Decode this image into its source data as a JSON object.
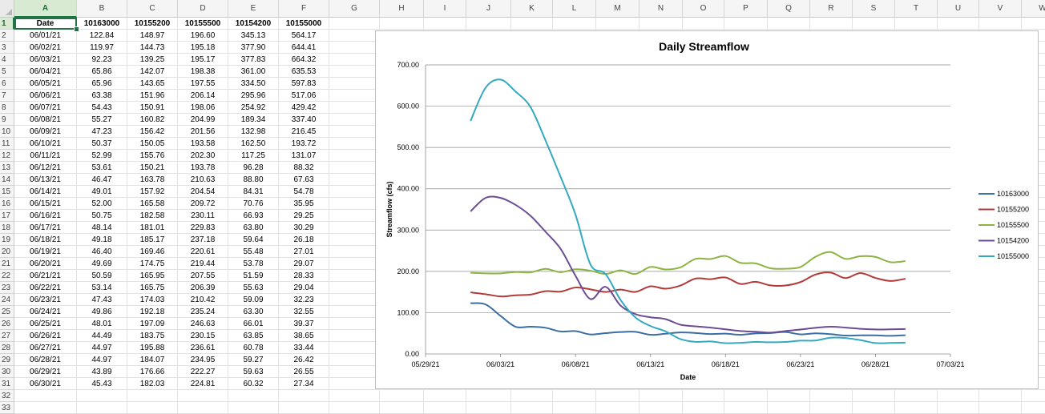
{
  "sheet": {
    "columns": [
      "A",
      "B",
      "C",
      "D",
      "E",
      "F",
      "G",
      "H",
      "I",
      "J",
      "K",
      "L",
      "M",
      "N",
      "O",
      "P",
      "Q",
      "R",
      "S",
      "T",
      "U",
      "V",
      "W"
    ],
    "row_numbers": [
      1,
      2,
      3,
      4,
      5,
      6,
      7,
      8,
      9,
      10,
      11,
      12,
      13,
      14,
      15,
      16,
      17,
      18,
      19,
      20,
      21,
      22,
      23,
      24,
      25,
      26,
      27,
      28,
      29,
      30,
      31,
      32,
      33
    ],
    "active_cell": "A1",
    "headers": [
      "Date",
      "10163000",
      "10155200",
      "10155500",
      "10154200",
      "10155000"
    ],
    "rows": [
      [
        "06/01/21",
        "122.84",
        "148.97",
        "196.60",
        "345.13",
        "564.17"
      ],
      [
        "06/02/21",
        "119.97",
        "144.73",
        "195.18",
        "377.90",
        "644.41"
      ],
      [
        "06/03/21",
        "92.23",
        "139.25",
        "195.17",
        "377.83",
        "664.32"
      ],
      [
        "06/04/21",
        "65.86",
        "142.07",
        "198.38",
        "361.00",
        "635.53"
      ],
      [
        "06/05/21",
        "65.96",
        "143.65",
        "197.55",
        "334.50",
        "597.83"
      ],
      [
        "06/06/21",
        "63.38",
        "151.96",
        "206.14",
        "295.96",
        "517.06"
      ],
      [
        "06/07/21",
        "54.43",
        "150.91",
        "198.06",
        "254.92",
        "429.42"
      ],
      [
        "06/08/21",
        "55.27",
        "160.82",
        "204.99",
        "189.34",
        "337.40"
      ],
      [
        "06/09/21",
        "47.23",
        "156.42",
        "201.56",
        "132.98",
        "216.45"
      ],
      [
        "06/10/21",
        "50.37",
        "150.05",
        "193.58",
        "162.50",
        "193.72"
      ],
      [
        "06/11/21",
        "52.99",
        "155.76",
        "202.30",
        "117.25",
        "131.07"
      ],
      [
        "06/12/21",
        "53.61",
        "150.21",
        "193.78",
        "96.28",
        "88.32"
      ],
      [
        "06/13/21",
        "46.47",
        "163.78",
        "210.63",
        "88.80",
        "67.63"
      ],
      [
        "06/14/21",
        "49.01",
        "157.92",
        "204.54",
        "84.31",
        "54.78"
      ],
      [
        "06/15/21",
        "52.00",
        "165.58",
        "209.72",
        "70.76",
        "35.95"
      ],
      [
        "06/16/21",
        "50.75",
        "182.58",
        "230.11",
        "66.93",
        "29.25"
      ],
      [
        "06/17/21",
        "48.14",
        "181.01",
        "229.83",
        "63.80",
        "30.29"
      ],
      [
        "06/18/21",
        "49.18",
        "185.17",
        "237.18",
        "59.64",
        "26.18"
      ],
      [
        "06/19/21",
        "46.40",
        "169.46",
        "220.61",
        "55.48",
        "27.01"
      ],
      [
        "06/20/21",
        "49.69",
        "174.75",
        "219.44",
        "53.78",
        "29.07"
      ],
      [
        "06/21/21",
        "50.59",
        "165.95",
        "207.55",
        "51.59",
        "28.33"
      ],
      [
        "06/22/21",
        "53.14",
        "165.75",
        "206.39",
        "55.63",
        "29.04"
      ],
      [
        "06/23/21",
        "47.43",
        "174.03",
        "210.42",
        "59.09",
        "32.23"
      ],
      [
        "06/24/21",
        "49.86",
        "192.18",
        "235.24",
        "63.30",
        "32.55"
      ],
      [
        "06/25/21",
        "48.01",
        "197.09",
        "246.63",
        "66.01",
        "39.37"
      ],
      [
        "06/26/21",
        "44.49",
        "183.75",
        "230.15",
        "63.85",
        "38.65"
      ],
      [
        "06/27/21",
        "44.97",
        "195.88",
        "236.61",
        "60.78",
        "33.44"
      ],
      [
        "06/28/21",
        "44.97",
        "184.07",
        "234.95",
        "59.27",
        "26.42"
      ],
      [
        "06/29/21",
        "43.89",
        "176.66",
        "222.27",
        "59.63",
        "26.55"
      ],
      [
        "06/30/21",
        "45.43",
        "182.03",
        "224.81",
        "60.32",
        "27.34"
      ]
    ]
  },
  "chart_data": {
    "type": "line",
    "title": "Daily Streamflow",
    "xlabel": "Date",
    "ylabel": "Streamflow (cfs)",
    "ylim": [
      0,
      700
    ],
    "y_ticks": [
      "0.00",
      "100.00",
      "200.00",
      "300.00",
      "400.00",
      "500.00",
      "600.00",
      "700.00"
    ],
    "x_ticks": [
      "05/29/21",
      "06/03/21",
      "06/08/21",
      "06/13/21",
      "06/18/21",
      "06/23/21",
      "06/28/21",
      "07/03/21"
    ],
    "xlim": [
      "05/29/21",
      "07/03/21"
    ],
    "x": [
      "06/01/21",
      "06/02/21",
      "06/03/21",
      "06/04/21",
      "06/05/21",
      "06/06/21",
      "06/07/21",
      "06/08/21",
      "06/09/21",
      "06/10/21",
      "06/11/21",
      "06/12/21",
      "06/13/21",
      "06/14/21",
      "06/15/21",
      "06/16/21",
      "06/17/21",
      "06/18/21",
      "06/19/21",
      "06/20/21",
      "06/21/21",
      "06/22/21",
      "06/23/21",
      "06/24/21",
      "06/25/21",
      "06/26/21",
      "06/27/21",
      "06/28/21",
      "06/29/21",
      "06/30/21"
    ],
    "grid": "horizontal",
    "legend_position": "right",
    "smooth": true,
    "series": [
      {
        "name": "10163000",
        "color": "#3c6ea4",
        "values": [
          122.84,
          119.97,
          92.23,
          65.86,
          65.96,
          63.38,
          54.43,
          55.27,
          47.23,
          50.37,
          52.99,
          53.61,
          46.47,
          49.01,
          52.0,
          50.75,
          48.14,
          49.18,
          46.4,
          49.69,
          50.59,
          53.14,
          47.43,
          49.86,
          48.01,
          44.49,
          44.97,
          44.97,
          43.89,
          45.43
        ]
      },
      {
        "name": "10155200",
        "color": "#b33a3a",
        "values": [
          148.97,
          144.73,
          139.25,
          142.07,
          143.65,
          151.96,
          150.91,
          160.82,
          156.42,
          150.05,
          155.76,
          150.21,
          163.78,
          157.92,
          165.58,
          182.58,
          181.01,
          185.17,
          169.46,
          174.75,
          165.95,
          165.75,
          174.03,
          192.18,
          197.09,
          183.75,
          195.88,
          184.07,
          176.66,
          182.03
        ]
      },
      {
        "name": "10155500",
        "color": "#8db343",
        "values": [
          196.6,
          195.18,
          195.17,
          198.38,
          197.55,
          206.14,
          198.06,
          204.99,
          201.56,
          193.58,
          202.3,
          193.78,
          210.63,
          204.54,
          209.72,
          230.11,
          229.83,
          237.18,
          220.61,
          219.44,
          207.55,
          206.39,
          210.42,
          235.24,
          246.63,
          230.15,
          236.61,
          234.95,
          222.27,
          224.81
        ]
      },
      {
        "name": "10154200",
        "color": "#6c4c93",
        "values": [
          345.13,
          377.9,
          377.83,
          361.0,
          334.5,
          295.96,
          254.92,
          189.34,
          132.98,
          162.5,
          117.25,
          96.28,
          88.8,
          84.31,
          70.76,
          66.93,
          63.8,
          59.64,
          55.48,
          53.78,
          51.59,
          55.63,
          59.09,
          63.3,
          66.01,
          63.85,
          60.78,
          59.27,
          59.63,
          60.32
        ]
      },
      {
        "name": "10155000",
        "color": "#34a9c0",
        "values": [
          564.17,
          644.41,
          664.32,
          635.53,
          597.83,
          517.06,
          429.42,
          337.4,
          216.45,
          193.72,
          131.07,
          88.32,
          67.63,
          54.78,
          35.95,
          29.25,
          30.29,
          26.18,
          27.01,
          29.07,
          28.33,
          29.04,
          32.23,
          32.55,
          39.37,
          38.65,
          33.44,
          26.42,
          26.55,
          27.34
        ]
      }
    ]
  }
}
